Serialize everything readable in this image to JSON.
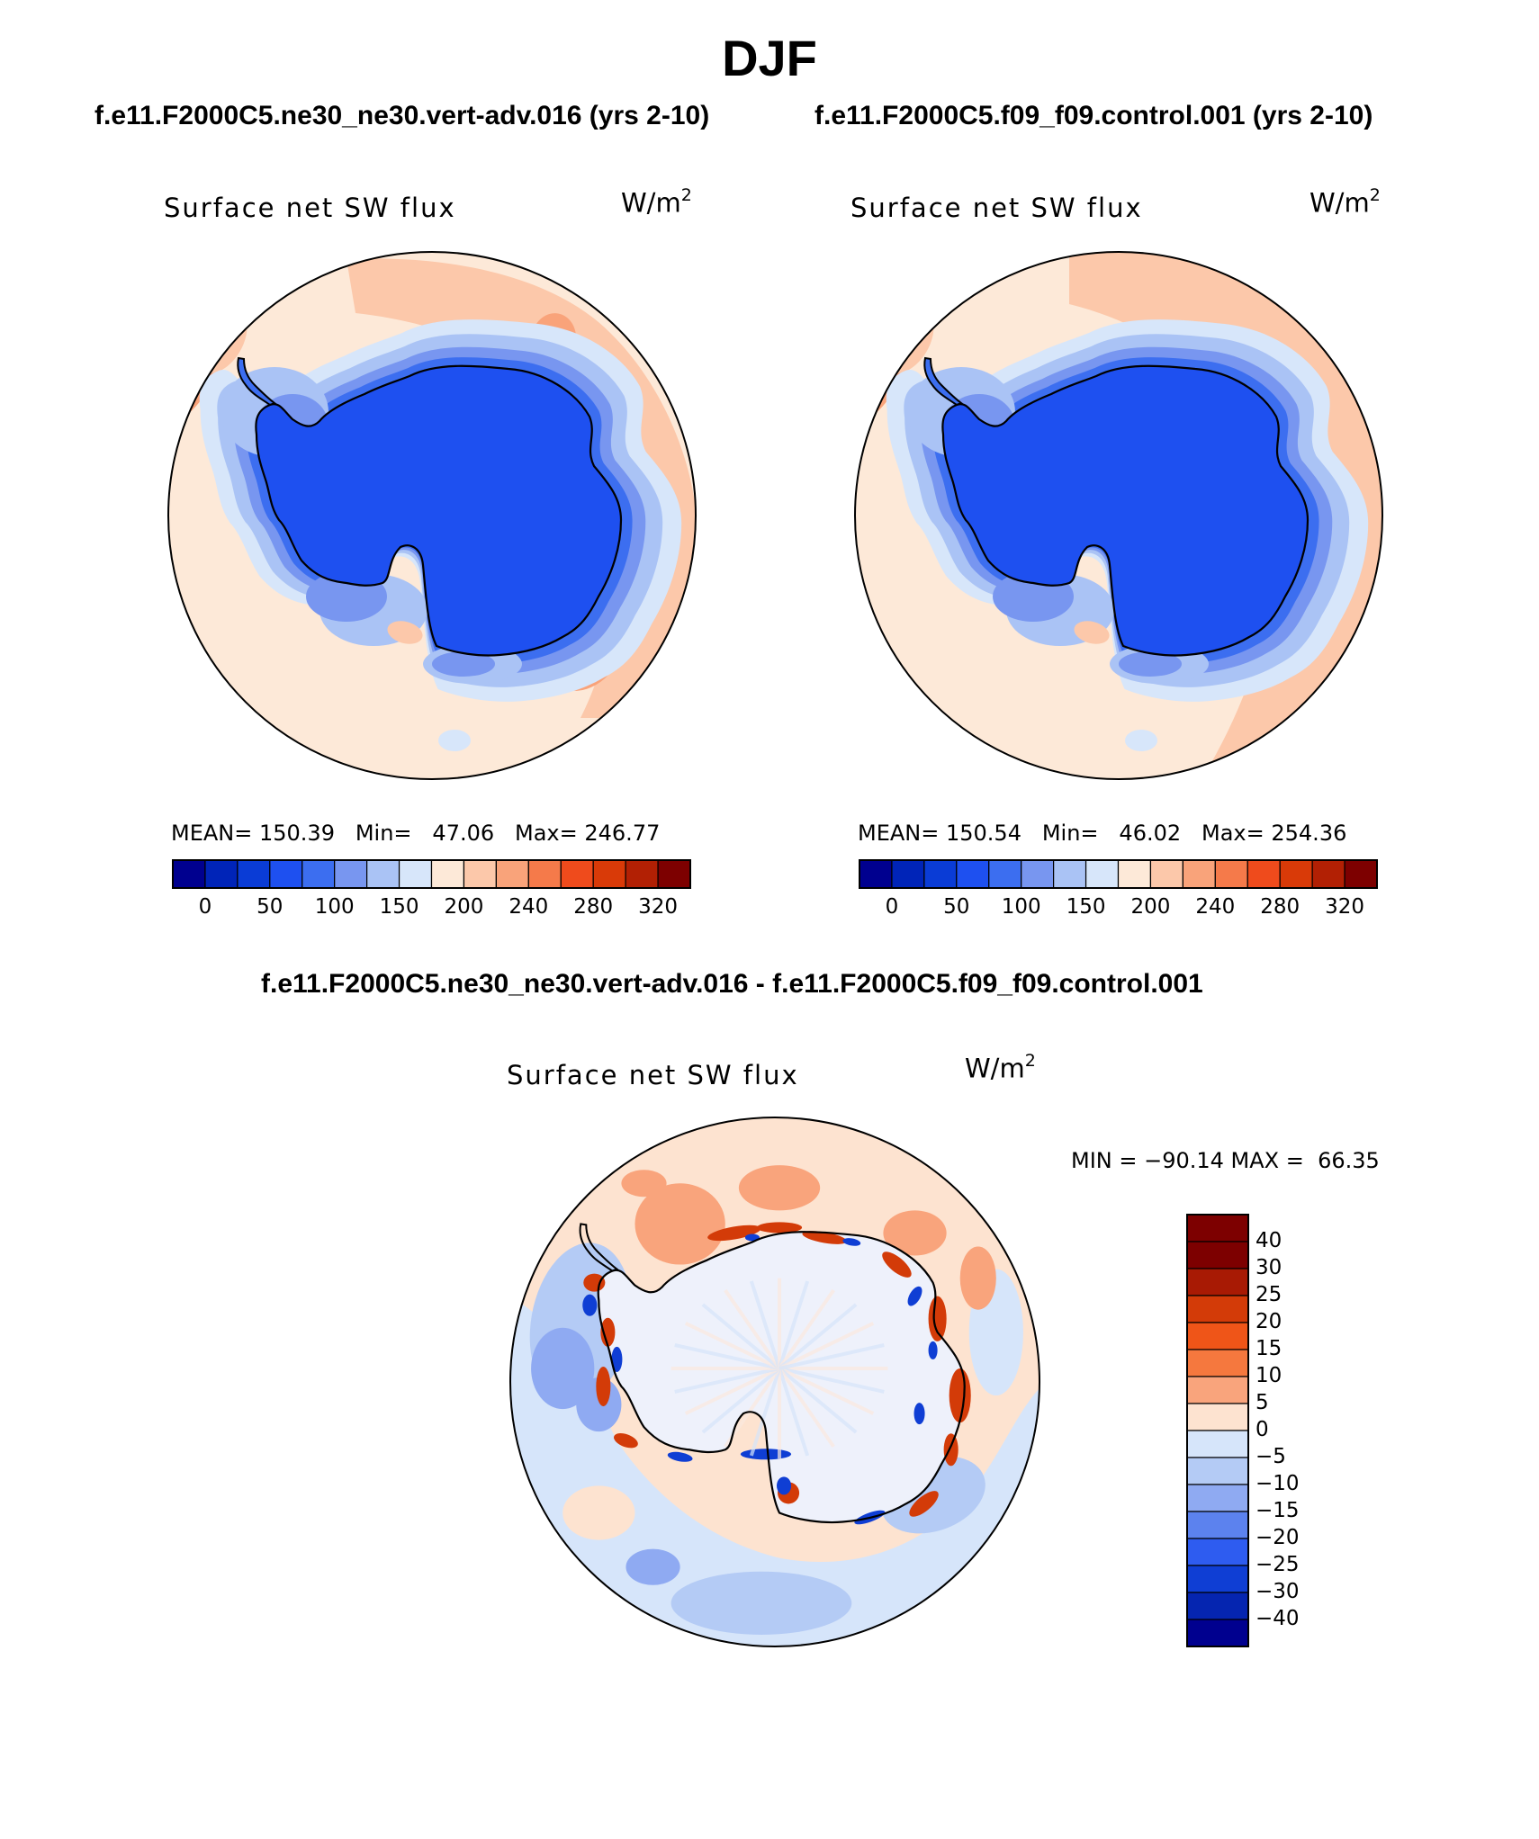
{
  "title": "DJF",
  "panels": [
    {
      "case": "f.e11.F2000C5.ne30_ne30.vert-adv.016 (yrs 2-10)",
      "field": "Surface net SW flux",
      "units_base": "W/m",
      "units_exp": "2",
      "stats": "MEAN= 150.39   Min=   47.06   Max= 246.77",
      "colorbar_ticks": [
        "0",
        "50",
        "100",
        "150",
        "200",
        "240",
        "280",
        "320"
      ]
    },
    {
      "case": "f.e11.F2000C5.f09_f09.control.001 (yrs 2-10)",
      "field": "Surface net SW flux",
      "units_base": "W/m",
      "units_exp": "2",
      "stats": "MEAN= 150.54   Min=   46.02   Max= 254.36",
      "colorbar_ticks": [
        "0",
        "50",
        "100",
        "150",
        "200",
        "240",
        "280",
        "320"
      ]
    }
  ],
  "diff_panel": {
    "case": "f.e11.F2000C5.ne30_ne30.vert-adv.016 - f.e11.F2000C5.f09_f09.control.001",
    "field": "Surface net SW flux",
    "units_base": "W/m",
    "units_exp": "2",
    "stats": "MIN = −90.14 MAX =  66.35",
    "colorbar_ticks": [
      "40",
      "30",
      "25",
      "20",
      "15",
      "10",
      "5",
      "0",
      "−5",
      "−10",
      "−15",
      "−20",
      "−25",
      "−30",
      "−40"
    ]
  },
  "colors": {
    "seq_palette": [
      "#00008f",
      "#0024b8",
      "#0a3cd6",
      "#1e50f0",
      "#3c6ef0",
      "#7896f0",
      "#aac3f5",
      "#d7e6fa",
      "#fde9d8",
      "#fcc8aa",
      "#f9a37a",
      "#f57a4a",
      "#ef4b1c",
      "#d93a08",
      "#b22004",
      "#7d0000"
    ],
    "div_palette": [
      "#7d0000",
      "#a81a04",
      "#d33b08",
      "#ef5518",
      "#f5783e",
      "#f9a47c",
      "#fde3d0",
      "#d6e5fa",
      "#b4cbf5",
      "#8faaf2",
      "#5c82ee",
      "#2e5cf0",
      "#0f3ed4",
      "#0525b0",
      "#00008f"
    ],
    "ocean_seq": "#fde9d8",
    "antarctic_seq": "#1e50f0",
    "ocean_diff": "#fde3d0"
  }
}
